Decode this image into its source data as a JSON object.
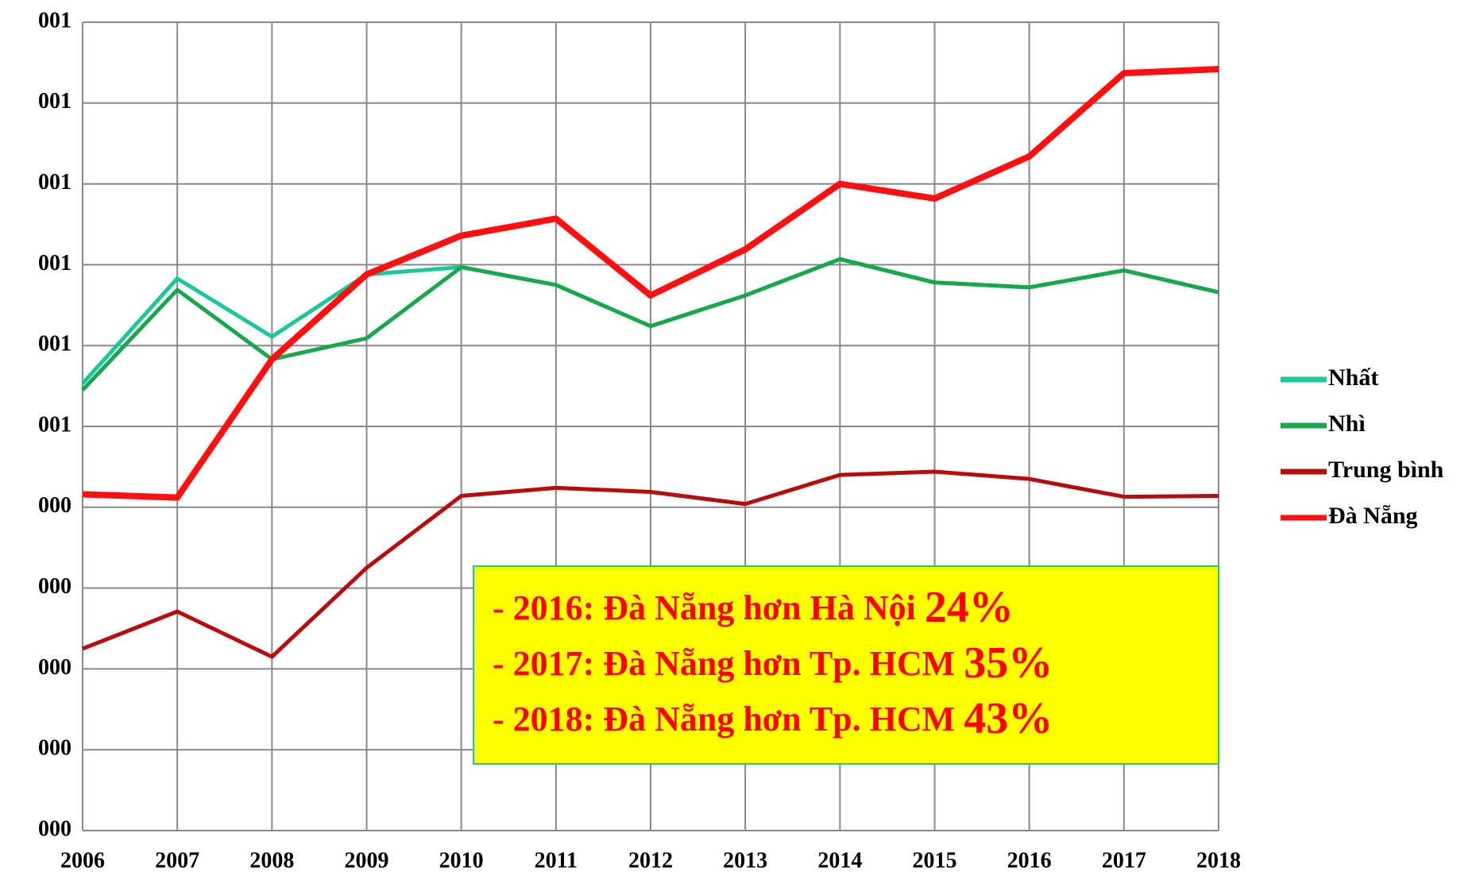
{
  "chart_data": {
    "type": "line",
    "x": [
      2006,
      2007,
      2008,
      2009,
      2010,
      2011,
      2012,
      2013,
      2014,
      2015,
      2016,
      2017,
      2018
    ],
    "xlim": [
      2006,
      2018
    ],
    "xticks": [
      2006,
      2007,
      2008,
      2009,
      2010,
      2011,
      2012,
      2013,
      2014,
      2015,
      2016,
      2017,
      2018
    ],
    "ylim": [
      0,
      1
    ],
    "yticks": [
      {
        "value": 0,
        "label": "000"
      },
      {
        "value": 0.1,
        "label": "000"
      },
      {
        "value": 0.2,
        "label": "000"
      },
      {
        "value": 0.3,
        "label": "000"
      },
      {
        "value": 0.4,
        "label": "000"
      },
      {
        "value": 0.5,
        "label": "001"
      },
      {
        "value": 0.6,
        "label": "001"
      },
      {
        "value": 0.7,
        "label": "001"
      },
      {
        "value": 0.8,
        "label": "001"
      },
      {
        "value": 0.9,
        "label": "001"
      },
      {
        "value": 1.0,
        "label": "001"
      }
    ],
    "grid": true,
    "legend": "right",
    "series": [
      {
        "name": "Nhất",
        "color": "#1cc79a",
        "width": 5,
        "values": [
          0.553,
          0.683,
          0.611,
          0.688,
          0.697,
          0.675,
          0.624,
          0.662,
          0.707,
          0.678,
          0.672,
          0.693,
          0.666
        ]
      },
      {
        "name": "Nhì",
        "color": "#1aa64a",
        "width": 5,
        "values": [
          0.545,
          0.669,
          0.583,
          0.609,
          0.697,
          0.675,
          0.624,
          0.662,
          0.707,
          0.678,
          0.672,
          0.693,
          0.666
        ]
      },
      {
        "name": "Trung bình",
        "color": "#b70c0c",
        "width": 5,
        "values": [
          0.225,
          0.271,
          0.215,
          0.325,
          0.414,
          0.424,
          0.419,
          0.404,
          0.44,
          0.444,
          0.435,
          0.413,
          0.414
        ]
      },
      {
        "name": "Đà Nẵng",
        "color": "#ff0f0f",
        "width": 8,
        "values": [
          0.416,
          0.412,
          0.583,
          0.688,
          0.736,
          0.757,
          0.662,
          0.719,
          0.8,
          0.782,
          0.834,
          0.937,
          0.942
        ]
      }
    ],
    "annotation": [
      {
        "text": "- 2016: Đà Nẵng hơn Hà Nội ",
        "highlight": "24%"
      },
      {
        "text": "- 2017: Đà Nẵng hơn Tp. HCM ",
        "highlight": "35%"
      },
      {
        "text": "- 2018: Đà Nẵng hơn Tp. HCM ",
        "highlight": "43%"
      }
    ]
  }
}
